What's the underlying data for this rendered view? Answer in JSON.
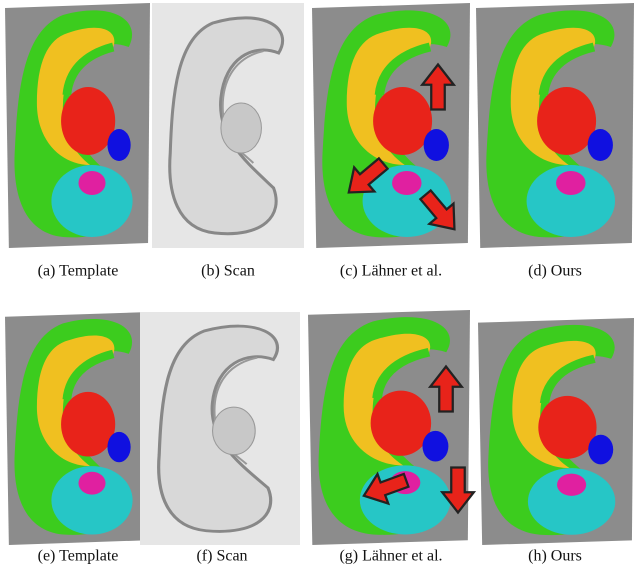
{
  "panels": [
    {
      "caption": "(a) Template"
    },
    {
      "caption": "(b) Scan"
    },
    {
      "caption": "(c) Lähner et al."
    },
    {
      "caption": "(d) Ours"
    },
    {
      "caption": "(e) Template"
    },
    {
      "caption": "(f) Scan"
    },
    {
      "caption": "(g) Lähner et al."
    },
    {
      "caption": "(h) Ours"
    }
  ]
}
